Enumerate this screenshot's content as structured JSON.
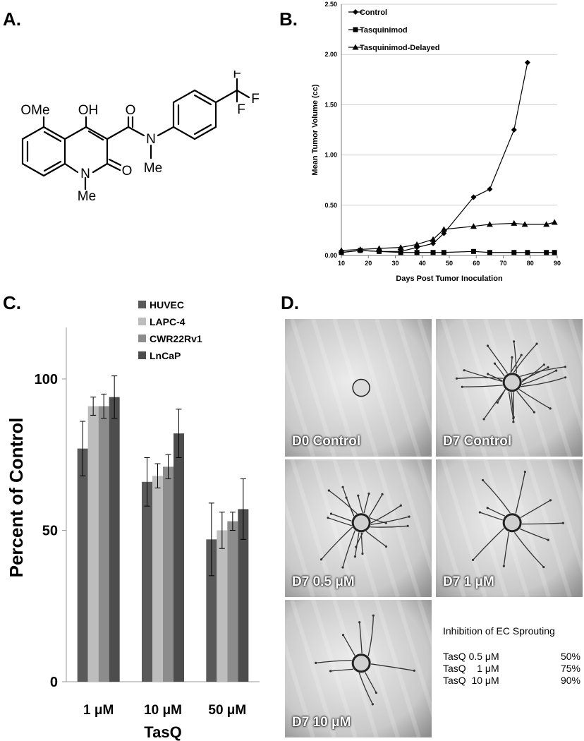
{
  "panels": {
    "a": "A.",
    "b": "B.",
    "c": "C.",
    "d": "D."
  },
  "molecule": {
    "ome": "OMe",
    "oh": "OH",
    "o_amide": "O",
    "n_amide": "N",
    "me_amide": "Me",
    "n_ring": "N",
    "me_ring": "Me",
    "o_ring": "O",
    "f1": "F",
    "f2": "F",
    "f3": "F"
  },
  "chart_data": [
    {
      "type": "line",
      "xlabel": "Days Post Tumor Inoculation",
      "ylabel": "Mean Tumor Volume (cc)",
      "xlim": [
        10,
        90
      ],
      "ylim": [
        0,
        2.5
      ],
      "xticks": [
        10,
        20,
        30,
        40,
        50,
        60,
        70,
        80,
        90
      ],
      "yticks": [
        "0.00",
        "0.50",
        "1.00",
        "1.50",
        "2.00",
        "2.50"
      ],
      "grid": "horizontal",
      "legend": "top-left",
      "series": [
        {
          "name": "Control",
          "marker": "diamond",
          "x": [
            10,
            17,
            24,
            32,
            38,
            44,
            48,
            59,
            65,
            74,
            79
          ],
          "y": [
            0.03,
            0.05,
            0.04,
            0.04,
            0.08,
            0.12,
            0.22,
            0.58,
            0.66,
            1.25,
            1.92
          ]
        },
        {
          "name": "Tasquinimod",
          "marker": "square",
          "x": [
            10,
            17,
            24,
            32,
            38,
            44,
            48,
            59,
            65,
            74,
            79,
            86,
            89
          ],
          "y": [
            0.03,
            0.05,
            0.04,
            0.03,
            0.03,
            0.03,
            0.03,
            0.04,
            0.03,
            0.03,
            0.03,
            0.03,
            0.03
          ]
        },
        {
          "name": "Tasquinimod-Delayed",
          "marker": "triangle",
          "x": [
            10,
            17,
            24,
            32,
            38,
            44,
            48,
            59,
            65,
            74,
            78,
            86,
            89
          ],
          "y": [
            0.05,
            0.06,
            0.07,
            0.08,
            0.11,
            0.16,
            0.26,
            0.29,
            0.31,
            0.32,
            0.31,
            0.31,
            0.33
          ]
        }
      ]
    },
    {
      "type": "bar",
      "xlabel": "TasQ",
      "ylabel": "Percent of Control",
      "categories": [
        "1 μM",
        "10 μM",
        "50 μM"
      ],
      "ylim": [
        0,
        117
      ],
      "yticks": [
        "0",
        "50",
        "100"
      ],
      "legend": "top-center",
      "series": [
        {
          "name": "HUVEC",
          "color": "#595959",
          "values": [
            77,
            66,
            47
          ],
          "errors": [
            9,
            8,
            12
          ]
        },
        {
          "name": "LAPC-4",
          "color": "#bdbdbd",
          "values": [
            91,
            68,
            50
          ],
          "errors": [
            3,
            4,
            6
          ]
        },
        {
          "name": "CWR22Rv1",
          "color": "#8c8c8c",
          "values": [
            91,
            71,
            53
          ],
          "errors": [
            4,
            4,
            3
          ]
        },
        {
          "name": "LnCaP",
          "color": "#4d4d4d",
          "values": [
            94,
            82,
            57
          ],
          "errors": [
            7,
            8,
            10
          ]
        }
      ]
    }
  ],
  "micrographs": [
    {
      "label": "D0 Control",
      "sprouts": 0
    },
    {
      "label": "D7 Control",
      "sprouts": 22
    },
    {
      "label": "D7 0.5 μM",
      "sprouts": 18
    },
    {
      "label": "D7 1 μM",
      "sprouts": 10
    },
    {
      "label": "D7 10 μM",
      "sprouts": 8
    }
  ],
  "inhibition": {
    "title": "Inhibition of EC Sprouting",
    "rows": [
      {
        "label": "TasQ 0.5 μM",
        "value": "50%"
      },
      {
        "label": "TasQ    1 μM",
        "value": "75%"
      },
      {
        "label": "TasQ  10 μM",
        "value": "90%"
      }
    ]
  }
}
